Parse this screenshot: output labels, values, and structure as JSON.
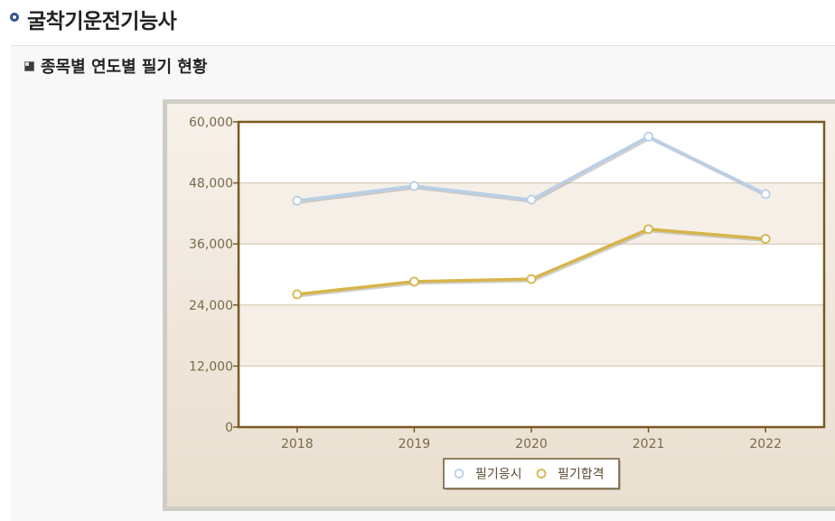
{
  "page": {
    "title": "굴착기운전기능사"
  },
  "section": {
    "title": "종목별 연도별 필기 현황"
  },
  "colors": {
    "applicants": "#b9cfe6",
    "passers": "#d6b54a",
    "plot_border": "#7a5a22",
    "band": "#f5efe7"
  },
  "chart_data": {
    "type": "line",
    "categories": [
      "2018",
      "2019",
      "2020",
      "2021",
      "2022"
    ],
    "series": [
      {
        "name": "필기응시",
        "values": [
          44500,
          47400,
          44700,
          57100,
          45800
        ]
      },
      {
        "name": "필기합격",
        "values": [
          26100,
          28600,
          29100,
          38900,
          37000
        ]
      }
    ],
    "y_ticks": [
      "0",
      "12,000",
      "24,000",
      "36,000",
      "48,000",
      "60,000"
    ],
    "ylim": [
      0,
      60000
    ],
    "legend": "bottom",
    "grid": true
  }
}
